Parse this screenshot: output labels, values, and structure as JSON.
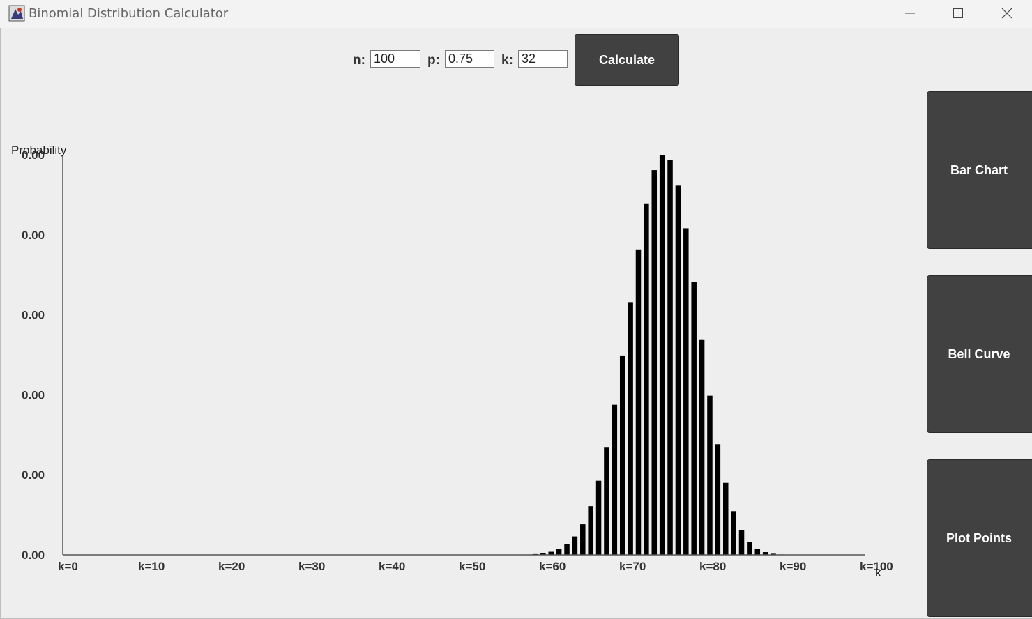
{
  "window": {
    "title": "Binomial Distribution Calculator",
    "icons": [
      "app-icon",
      "minimize-icon",
      "maximize-icon",
      "close-icon"
    ]
  },
  "inputs": {
    "n_label": "n:",
    "n_value": "100",
    "p_label": "p:",
    "p_value": "0.75",
    "k_label": "k:",
    "k_value": "32",
    "calculate_label": "Calculate"
  },
  "side_buttons": {
    "bar_chart": "Bar Chart",
    "bell_curve": "Bell Curve",
    "plot_points": "Plot Points"
  },
  "chart_data": {
    "type": "bar",
    "ylabel": "Probability",
    "xlabel": "k",
    "y_tick_labels": [
      "0.00",
      "0.00",
      "0.00",
      "0.00",
      "0.00",
      "0.00"
    ],
    "x_tick_labels": [
      "k=0",
      "k=10",
      "k=20",
      "k=30",
      "k=40",
      "k=50",
      "k=60",
      "k=70",
      "k=80",
      "k=90",
      "k=100"
    ],
    "n": 100,
    "p": 0.75,
    "x_range": [
      0,
      100
    ],
    "grid": false,
    "bar_color": "#000000"
  }
}
